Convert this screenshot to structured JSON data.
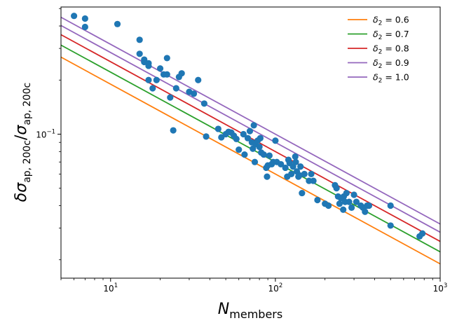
{
  "chart_data": {
    "type": "scatter",
    "title": "",
    "xlabel": "N_members",
    "ylabel": "δσ_ap,200c / σ_ap,200c",
    "xscale": "log",
    "yscale": "log",
    "xlim": [
      5,
      1000
    ],
    "ylim": [
      0.0158,
      0.51
    ],
    "grid": false,
    "legend_position": "top-right",
    "x_ticks": [
      {
        "value": 10,
        "base": "10",
        "exp": "1"
      },
      {
        "value": 100,
        "base": "10",
        "exp": "2"
      },
      {
        "value": 1000,
        "base": "10",
        "exp": "3"
      }
    ],
    "y_ticks": [
      {
        "value": 0.1,
        "base": "10",
        "exp": "−1"
      }
    ],
    "lines": [
      {
        "name": "δ2 = 0.6",
        "name_base": "δ",
        "name_sub": "2",
        "name_rest": " = 0.6",
        "color": "#ff7f0e",
        "a": 0.6,
        "slope": -0.5
      },
      {
        "name": "δ2 = 0.7",
        "name_base": "δ",
        "name_sub": "2",
        "name_rest": " = 0.7",
        "color": "#2ca02c",
        "a": 0.7,
        "slope": -0.5
      },
      {
        "name": "δ2 = 0.8",
        "name_base": "δ",
        "name_sub": "2",
        "name_rest": " = 0.8",
        "color": "#d62728",
        "a": 0.8,
        "slope": -0.5
      },
      {
        "name": "δ2 = 0.9",
        "name_base": "δ",
        "name_sub": "2",
        "name_rest": " = 0.9",
        "color": "#9467bd",
        "a": 0.9,
        "slope": -0.5
      },
      {
        "name": "δ2 = 1.0",
        "name_base": "δ",
        "name_sub": "2",
        "name_rest": " = 1.0",
        "color": "#9467bd",
        "a": 1.0,
        "slope": -0.5
      }
    ],
    "scatter_color": "#1f77b4",
    "points": [
      [
        6,
        0.455
      ],
      [
        7,
        0.44
      ],
      [
        7,
        0.395
      ],
      [
        11,
        0.41
      ],
      [
        15,
        0.335
      ],
      [
        15,
        0.28
      ],
      [
        16,
        0.26
      ],
      [
        16,
        0.252
      ],
      [
        17,
        0.248
      ],
      [
        17,
        0.24
      ],
      [
        17,
        0.2
      ],
      [
        18,
        0.18
      ],
      [
        19,
        0.2
      ],
      [
        20,
        0.232
      ],
      [
        21,
        0.215
      ],
      [
        22,
        0.265
      ],
      [
        22,
        0.215
      ],
      [
        23,
        0.16
      ],
      [
        24,
        0.105
      ],
      [
        25,
        0.18
      ],
      [
        26,
        0.208
      ],
      [
        27,
        0.218
      ],
      [
        30,
        0.172
      ],
      [
        32,
        0.168
      ],
      [
        34,
        0.2
      ],
      [
        37,
        0.148
      ],
      [
        38,
        0.097
      ],
      [
        45,
        0.107
      ],
      [
        47,
        0.096
      ],
      [
        50,
        0.1
      ],
      [
        52,
        0.103
      ],
      [
        54,
        0.102
      ],
      [
        56,
        0.098
      ],
      [
        58,
        0.094
      ],
      [
        60,
        0.082
      ],
      [
        64,
        0.1
      ],
      [
        65,
        0.077
      ],
      [
        68,
        0.095
      ],
      [
        70,
        0.104
      ],
      [
        72,
        0.09
      ],
      [
        73,
        0.083
      ],
      [
        74,
        0.112
      ],
      [
        75,
        0.07
      ],
      [
        76,
        0.088
      ],
      [
        78,
        0.092
      ],
      [
        80,
        0.085
      ],
      [
        81,
        0.095
      ],
      [
        82,
        0.079
      ],
      [
        85,
        0.077
      ],
      [
        88,
        0.065
      ],
      [
        89,
        0.058
      ],
      [
        90,
        0.067
      ],
      [
        92,
        0.076
      ],
      [
        95,
        0.068
      ],
      [
        97,
        0.07
      ],
      [
        100,
        0.092
      ],
      [
        102,
        0.07
      ],
      [
        108,
        0.068
      ],
      [
        115,
        0.065
      ],
      [
        118,
        0.058
      ],
      [
        120,
        0.072
      ],
      [
        122,
        0.069
      ],
      [
        125,
        0.06
      ],
      [
        128,
        0.066
      ],
      [
        132,
        0.075
      ],
      [
        133,
        0.07
      ],
      [
        135,
        0.062
      ],
      [
        138,
        0.058
      ],
      [
        140,
        0.059
      ],
      [
        142,
        0.066
      ],
      [
        145,
        0.047
      ],
      [
        150,
        0.06
      ],
      [
        160,
        0.055
      ],
      [
        165,
        0.06
      ],
      [
        170,
        0.055
      ],
      [
        180,
        0.043
      ],
      [
        200,
        0.041
      ],
      [
        210,
        0.04
      ],
      [
        230,
        0.052
      ],
      [
        235,
        0.05
      ],
      [
        240,
        0.045
      ],
      [
        245,
        0.041
      ],
      [
        250,
        0.044
      ],
      [
        258,
        0.038
      ],
      [
        260,
        0.045
      ],
      [
        265,
        0.042
      ],
      [
        270,
        0.047
      ],
      [
        280,
        0.042
      ],
      [
        290,
        0.039
      ],
      [
        300,
        0.046
      ],
      [
        310,
        0.042
      ],
      [
        330,
        0.04
      ],
      [
        340,
        0.039
      ],
      [
        350,
        0.037
      ],
      [
        360,
        0.04
      ],
      [
        370,
        0.04
      ],
      [
        500,
        0.04
      ],
      [
        500,
        0.031
      ],
      [
        750,
        0.027
      ],
      [
        780,
        0.028
      ]
    ]
  }
}
